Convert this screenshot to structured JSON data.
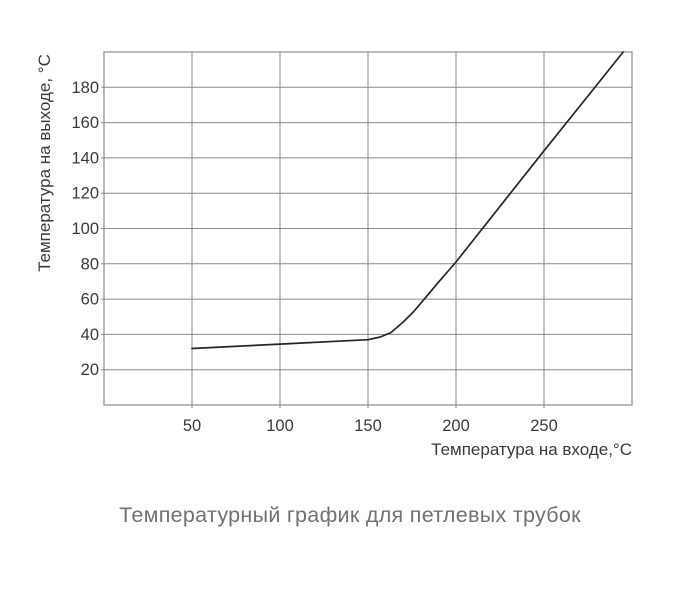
{
  "chart_data": {
    "type": "line",
    "title": "Температурный график для петлевых трубок",
    "xlabel": "Температура на входе,°С",
    "ylabel": "Температура на выходе, °С",
    "xlim": [
      0,
      300
    ],
    "ylim": [
      0,
      200
    ],
    "x_ticks": [
      50,
      100,
      150,
      200,
      250
    ],
    "y_ticks": [
      20,
      40,
      60,
      80,
      100,
      120,
      140,
      160,
      180
    ],
    "grid": true,
    "legend": false,
    "series": [
      {
        "name": "температура на выходе",
        "points": [
          [
            50,
            32
          ],
          [
            100,
            34.5
          ],
          [
            150,
            37
          ],
          [
            157,
            38.5
          ],
          [
            163,
            41
          ],
          [
            170,
            47
          ],
          [
            176,
            53
          ],
          [
            182,
            60
          ],
          [
            190,
            69.5
          ],
          [
            200,
            81
          ],
          [
            250,
            144
          ],
          [
            295,
            200
          ]
        ]
      }
    ],
    "colors": {
      "line": "#262626",
      "grid": "#8b8b8b",
      "tick_label": "#3a3a3a",
      "axis_label": "#3a3a3a",
      "caption": "#6d7278",
      "background": "#ffffff"
    }
  }
}
